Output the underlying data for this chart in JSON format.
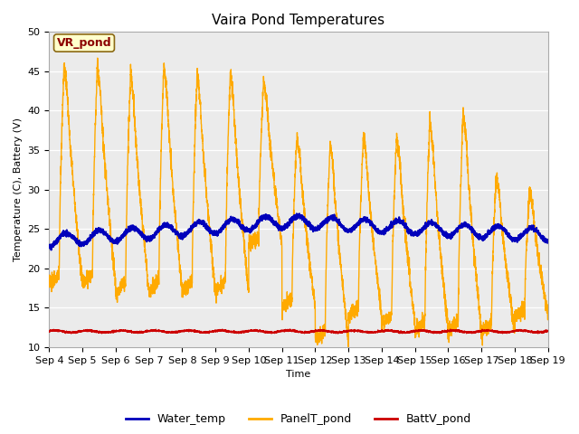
{
  "title": "Vaira Pond Temperatures",
  "xlabel": "Time",
  "ylabel": "Temperature (C), Battery (V)",
  "ylim": [
    10,
    50
  ],
  "annotation": "VR_pond",
  "legend_labels": [
    "Water_temp",
    "PanelT_pond",
    "BattV_pond"
  ],
  "legend_colors": [
    "#0000bb",
    "#ffaa00",
    "#cc0000"
  ],
  "bg_color": "#ebebeb",
  "grid_color": "#ffffff",
  "tick_labels": [
    "Sep 4",
    "Sep 5",
    "Sep 6",
    "Sep 7",
    "Sep 8",
    "Sep 9",
    "Sep 10",
    "Sep 11",
    "Sep 12",
    "Sep 13",
    "Sep 14",
    "Sep 15",
    "Sep 16",
    "Sep 17",
    "Sep 18",
    "Sep 19"
  ],
  "title_fontsize": 11,
  "label_fontsize": 8,
  "tick_fontsize": 8
}
